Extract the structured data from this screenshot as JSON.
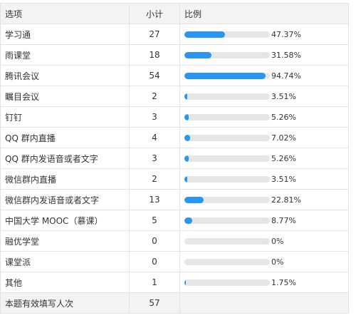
{
  "header": {
    "option": "选项",
    "count": "小计",
    "ratio": "比例"
  },
  "rows": [
    {
      "label": "学习通",
      "count": "27",
      "percent": "47.37%",
      "fraction": 0.4737
    },
    {
      "label": "雨课堂",
      "count": "18",
      "percent": "31.58%",
      "fraction": 0.3158
    },
    {
      "label": "腾讯会议",
      "count": "54",
      "percent": "94.74%",
      "fraction": 0.9474
    },
    {
      "label": "瞩目会议",
      "count": "2",
      "percent": "3.51%",
      "fraction": 0.0351
    },
    {
      "label": "钉钉",
      "count": "3",
      "percent": "5.26%",
      "fraction": 0.0526
    },
    {
      "label": "QQ 群内直播",
      "count": "4",
      "percent": "7.02%",
      "fraction": 0.0702
    },
    {
      "label": "QQ 群内发语音或者文字",
      "count": "3",
      "percent": "5.26%",
      "fraction": 0.0526
    },
    {
      "label": "微信群内直播",
      "count": "2",
      "percent": "3.51%",
      "fraction": 0.0351
    },
    {
      "label": "微信群内发语音或者文字",
      "count": "13",
      "percent": "22.81%",
      "fraction": 0.2281
    },
    {
      "label": "中国大学 MOOC（慕课）",
      "count": "5",
      "percent": "8.77%",
      "fraction": 0.0877
    },
    {
      "label": "融优学堂",
      "count": "0",
      "percent": "0%",
      "fraction": 0
    },
    {
      "label": "课堂派",
      "count": "0",
      "percent": "0%",
      "fraction": 0
    },
    {
      "label": "其他",
      "count": "1",
      "percent": "1.75%",
      "fraction": 0.0175
    }
  ],
  "footer": {
    "label": "本题有效填写人次",
    "count": "57"
  },
  "colors": {
    "bar": "#2b96f0",
    "track": "#e6e6e6",
    "header_bg": "#f3f3f3"
  }
}
